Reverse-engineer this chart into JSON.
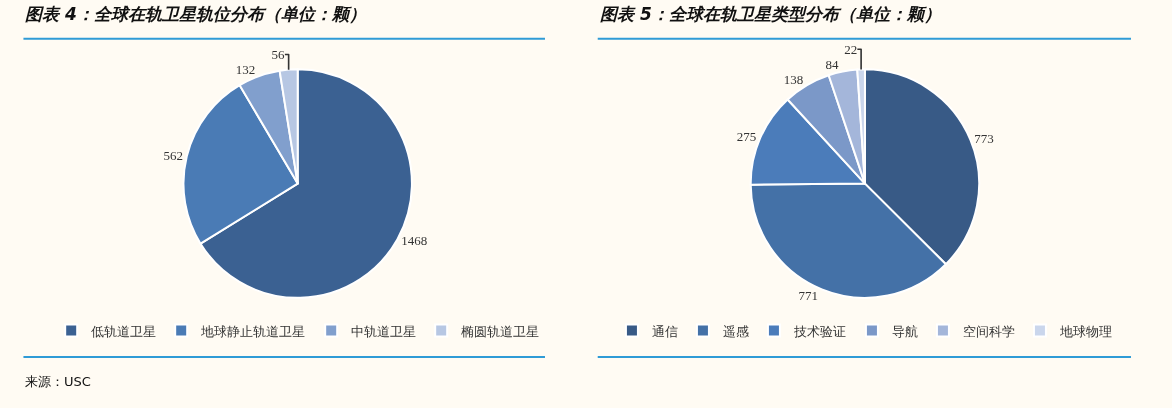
{
  "chart_data": [
    {
      "type": "pie",
      "title": "图表 4：全球在轨卫星轨位分布（单位：颗）",
      "categories": [
        "低轨道卫星",
        "地球静止轨道卫星",
        "中轨道卫星",
        "椭圆轨道卫星"
      ],
      "values": [
        1468,
        562,
        132,
        56
      ],
      "colors": [
        "#3b6192",
        "#4a7bb5",
        "#819fcd",
        "#b7c7e3"
      ],
      "data_labels": true,
      "legend": "bottom",
      "annotations": [
        "来源：USC"
      ]
    },
    {
      "type": "pie",
      "title": "图表 5：全球在轨卫星类型分布（单位：颗）",
      "categories": [
        "通信",
        "遥感",
        "技术验证",
        "导航",
        "空间科学",
        "地球物理"
      ],
      "values": [
        773,
        771,
        275,
        138,
        84,
        22
      ],
      "colors": [
        "#385a86",
        "#4471a7",
        "#4b7cba",
        "#7b98c8",
        "#a4b6da",
        "#cad6ec"
      ],
      "data_labels": true,
      "legend": "bottom"
    }
  ]
}
